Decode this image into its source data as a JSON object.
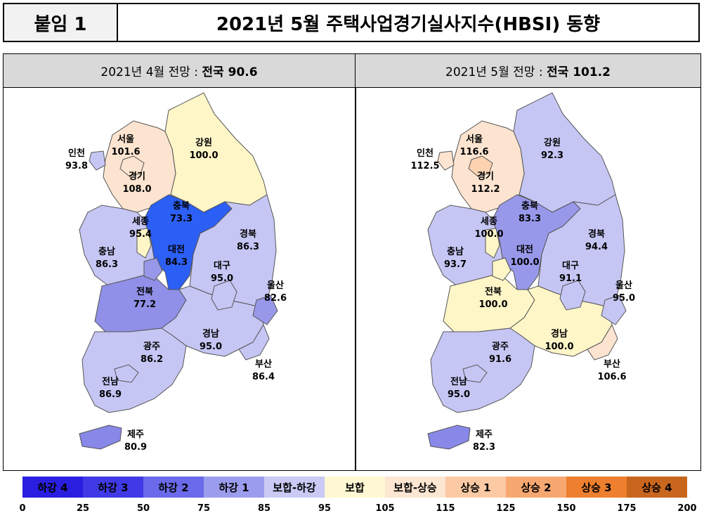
{
  "header": {
    "tag": "붙임 1",
    "title": "2021년 5월 주택사업경기실사지수(HBSI) 동향"
  },
  "panels": [
    {
      "prefix": "2021년 4월 전망 : ",
      "national": "전국 90.6",
      "regions": {
        "seoul": {
          "name": "서울",
          "value": "101.6",
          "color": "#fce4d0"
        },
        "incheon": {
          "name": "인천",
          "value": "93.8",
          "color": "#c6c6f5"
        },
        "gyeonggi": {
          "name": "경기",
          "value": "108.0",
          "color": "#fce4d0"
        },
        "gangwon": {
          "name": "강원",
          "value": "100.0",
          "color": "#fff6c8"
        },
        "chungbuk": {
          "name": "충북",
          "value": "73.3",
          "color": "#2c5ff5"
        },
        "sejong": {
          "name": "세종",
          "value": "95.4",
          "color": "#fff6c8"
        },
        "chungnam": {
          "name": "충남",
          "value": "86.3",
          "color": "#c6c6f5"
        },
        "daejeon": {
          "name": "대전",
          "value": "84.3",
          "color": "#9898ea"
        },
        "gyeongbuk": {
          "name": "경북",
          "value": "86.3",
          "color": "#c6c6f5"
        },
        "daegu": {
          "name": "대구",
          "value": "95.0",
          "color": "#c6c6f5"
        },
        "ulsan": {
          "name": "울산",
          "value": "82.6",
          "color": "#9898ea"
        },
        "jeonbuk": {
          "name": "전북",
          "value": "77.2",
          "color": "#9090e8"
        },
        "gyeongnam": {
          "name": "경남",
          "value": "95.0",
          "color": "#c6c6f5"
        },
        "busan": {
          "name": "부산",
          "value": "86.4",
          "color": "#c6c6f5"
        },
        "gwangju": {
          "name": "광주",
          "value": "86.2",
          "color": "#c6c6f5"
        },
        "jeonnam": {
          "name": "전남",
          "value": "86.9",
          "color": "#c6c6f5"
        },
        "jeju": {
          "name": "제주",
          "value": "80.9",
          "color": "#8888e8"
        }
      }
    },
    {
      "prefix": "2021년 5월 전망 : ",
      "national": "전국 101.2",
      "regions": {
        "seoul": {
          "name": "서울",
          "value": "116.6",
          "color": "#fcd2b0"
        },
        "incheon": {
          "name": "인천",
          "value": "112.5",
          "color": "#fce4d0"
        },
        "gyeonggi": {
          "name": "경기",
          "value": "112.2",
          "color": "#fce4d0"
        },
        "gangwon": {
          "name": "강원",
          "value": "92.3",
          "color": "#c6c6f5"
        },
        "chungbuk": {
          "name": "충북",
          "value": "83.3",
          "color": "#9898ea"
        },
        "sejong": {
          "name": "세종",
          "value": "100.0",
          "color": "#fff6c8"
        },
        "chungnam": {
          "name": "충남",
          "value": "93.7",
          "color": "#c6c6f5"
        },
        "daejeon": {
          "name": "대전",
          "value": "100.0",
          "color": "#fff6c8"
        },
        "gyeongbuk": {
          "name": "경북",
          "value": "94.4",
          "color": "#c6c6f5"
        },
        "daegu": {
          "name": "대구",
          "value": "91.1",
          "color": "#c6c6f5"
        },
        "ulsan": {
          "name": "울산",
          "value": "95.0",
          "color": "#c6c6f5"
        },
        "jeonbuk": {
          "name": "전북",
          "value": "100.0",
          "color": "#fff6c8"
        },
        "gyeongnam": {
          "name": "경남",
          "value": "100.0",
          "color": "#fff6c8"
        },
        "busan": {
          "name": "부산",
          "value": "106.6",
          "color": "#fce4d0"
        },
        "gwangju": {
          "name": "광주",
          "value": "91.6",
          "color": "#c6c6f5"
        },
        "jeonnam": {
          "name": "전남",
          "value": "95.0",
          "color": "#c6c6f5"
        },
        "jeju": {
          "name": "제주",
          "value": "82.3",
          "color": "#8888e8"
        }
      }
    }
  ],
  "legend": [
    {
      "label": "하강 4",
      "color": "#2a1fe0"
    },
    {
      "label": "하강 3",
      "color": "#3f3ae6"
    },
    {
      "label": "하강 2",
      "color": "#6a6aea"
    },
    {
      "label": "하강 1",
      "color": "#9c9cee"
    },
    {
      "label": "보합-하강",
      "color": "#cacaf5"
    },
    {
      "label": "보합",
      "color": "#fff8d2"
    },
    {
      "label": "보합-상승",
      "color": "#fde6d2"
    },
    {
      "label": "상승 1",
      "color": "#fbcaa4"
    },
    {
      "label": "상승 2",
      "color": "#f7a870"
    },
    {
      "label": "상승 3",
      "color": "#ee7f2e"
    },
    {
      "label": "상승 4",
      "color": "#c9661e"
    }
  ],
  "ticks": [
    "0",
    "25",
    "50",
    "75",
    "85",
    "95",
    "105",
    "115",
    "125",
    "150",
    "175",
    "200"
  ]
}
